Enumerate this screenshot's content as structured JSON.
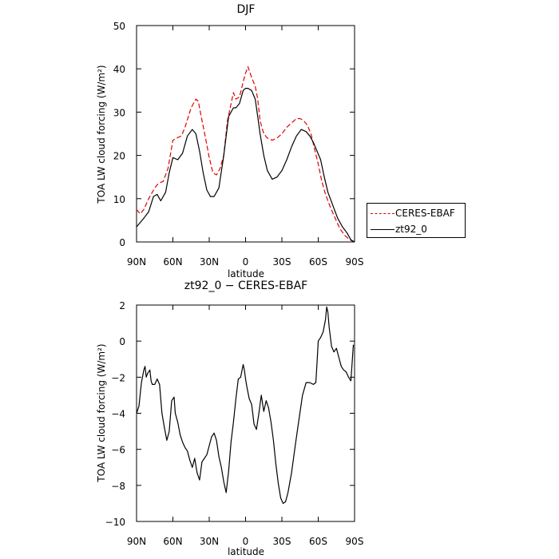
{
  "colors": {
    "ceres": "#e00000",
    "model": "#000000",
    "axis": "#000000"
  },
  "chart_data": [
    {
      "type": "line",
      "title": "DJF",
      "xlabel": "latitude",
      "ylabel": "TOA LW cloud forcing (W/m²)",
      "ylim": [
        0,
        50
      ],
      "yticks": [
        "0",
        "10",
        "20",
        "30",
        "40",
        "50"
      ],
      "xlim": [
        90,
        -90
      ],
      "xtick_values": [
        90,
        60,
        30,
        0,
        -30,
        -60,
        -90
      ],
      "xticks": [
        "90N",
        "60N",
        "30N",
        "0",
        "30S",
        "60S",
        "90S"
      ],
      "legend_placement": "right",
      "series": [
        {
          "name": "CERES-EBAF",
          "style": "dashed",
          "color": "#e00000",
          "x": [
            90,
            87,
            84,
            80,
            75,
            72,
            68,
            64,
            60,
            57,
            53,
            50,
            45,
            41,
            39,
            37,
            33,
            30,
            27,
            24,
            21,
            18,
            15,
            10,
            8,
            5,
            2,
            0,
            -2,
            -5,
            -8,
            -10,
            -12,
            -15,
            -18,
            -22,
            -26,
            -30,
            -34,
            -38,
            -42,
            -45,
            -48,
            -51,
            -54,
            -57,
            -60,
            -63,
            -66,
            -70,
            -74,
            -78,
            -82,
            -86,
            -90
          ],
          "y": [
            7.5,
            6.5,
            7.5,
            10,
            12.5,
            13.5,
            14,
            17,
            23.5,
            24,
            24.5,
            26.5,
            31,
            33,
            32.5,
            29.5,
            24,
            19.5,
            16,
            15.5,
            17,
            20,
            28,
            34.5,
            33,
            33.5,
            37,
            39,
            40.5,
            38,
            36,
            33,
            28,
            25,
            24,
            23.5,
            24,
            25,
            26.5,
            27.5,
            28.5,
            28.5,
            28,
            27,
            25,
            21.5,
            18,
            14,
            11,
            8,
            5.5,
            3,
            1.5,
            0.5,
            0
          ]
        },
        {
          "name": "zt92_0",
          "style": "solid",
          "color": "#000000",
          "x": [
            90,
            87,
            84,
            80,
            76,
            73,
            70,
            66,
            63,
            60,
            56,
            52,
            48,
            44,
            41,
            38,
            35,
            32,
            29,
            26,
            22,
            18,
            14,
            10,
            8,
            5,
            2,
            0,
            -2,
            -5,
            -8,
            -10,
            -12,
            -15,
            -18,
            -22,
            -26,
            -30,
            -34,
            -38,
            -42,
            -46,
            -50,
            -53,
            -56,
            -59,
            -62,
            -65,
            -68,
            -72,
            -76,
            -80,
            -84,
            -87,
            -90
          ],
          "y": [
            3.5,
            4.5,
            5.5,
            7,
            10.5,
            11,
            9.5,
            11.5,
            16,
            19.5,
            19,
            20.5,
            24.5,
            26,
            25,
            21,
            16,
            12,
            10.5,
            10.5,
            12.5,
            20,
            29,
            31,
            31,
            32,
            35,
            35.5,
            35.5,
            35,
            33,
            29,
            25,
            20,
            16.5,
            14.5,
            15,
            16.5,
            19,
            22,
            24.5,
            26,
            25.5,
            24.5,
            23,
            21,
            19,
            15,
            11.5,
            8.5,
            5.5,
            3.5,
            2,
            0.5,
            0
          ]
        }
      ]
    },
    {
      "type": "line",
      "title": "zt92_0 − CERES-EBAF",
      "xlabel": "latitude",
      "ylabel": "TOA LW cloud forcing (W/m²)",
      "ylim": [
        -10,
        2
      ],
      "yticks": [
        "−10",
        "−8",
        "−6",
        "−4",
        "−2",
        "0",
        "2"
      ],
      "ytick_values": [
        -10,
        -8,
        -6,
        -4,
        -2,
        0,
        2
      ],
      "xlim": [
        90,
        -90
      ],
      "xtick_values": [
        90,
        60,
        30,
        0,
        -30,
        -60,
        -90
      ],
      "xticks": [
        "90N",
        "60N",
        "30N",
        "0",
        "30S",
        "60S",
        "90S"
      ],
      "series": [
        {
          "name": "zt92_0 − CERES-EBAF",
          "style": "solid",
          "color": "#000000",
          "x": [
            90,
            88,
            86,
            84,
            83,
            82,
            81,
            79,
            78,
            77,
            75,
            73,
            71,
            69,
            67,
            65,
            63,
            61,
            59,
            58,
            56,
            54,
            52,
            50,
            48,
            46,
            44,
            42,
            40,
            38,
            36,
            34,
            32,
            30,
            28,
            26,
            24,
            22,
            20,
            18,
            16,
            14,
            12,
            10,
            8,
            6,
            4,
            2,
            1,
            0,
            -1,
            -3,
            -5,
            -7,
            -9,
            -11,
            -13,
            -15,
            -17,
            -19,
            -21,
            -23,
            -25,
            -27,
            -29,
            -31,
            -33,
            -35,
            -38,
            -41,
            -44,
            -47,
            -50,
            -53,
            -56,
            -58,
            -59,
            -60,
            -62,
            -64,
            -66,
            -67,
            -68,
            -69,
            -71,
            -73,
            -75,
            -77,
            -79,
            -81,
            -83,
            -85,
            -87,
            -89
          ],
          "x_note": "",
          "y": [
            -4,
            -3.6,
            -2.3,
            -1.6,
            -1.4,
            -2,
            -1.8,
            -1.6,
            -2.2,
            -2.4,
            -2.4,
            -2.1,
            -2.4,
            -4,
            -4.8,
            -5.5,
            -5,
            -3.3,
            -3.1,
            -4,
            -4.5,
            -5.2,
            -5.6,
            -5.9,
            -6.1,
            -6.6,
            -7,
            -6.5,
            -7.3,
            -7.7,
            -6.7,
            -6.5,
            -6.3,
            -5.8,
            -5.3,
            -5.1,
            -5.5,
            -6.4,
            -7,
            -7.8,
            -8.4,
            -7.2,
            -5.6,
            -4.5,
            -3.2,
            -2.1,
            -2,
            -1.3,
            -1.6,
            -2.1,
            -2.5,
            -3.2,
            -3.5,
            -4.6,
            -4.9,
            -4,
            -3,
            -3.9,
            -3.3,
            -3.7,
            -4.5,
            -5.5,
            -6.8,
            -7.9,
            -8.7,
            -9,
            -8.9,
            -8.4,
            -7.3,
            -5.8,
            -4.4,
            -3,
            -2.3,
            -2.3,
            -2.4,
            -2.3,
            -1.2,
            0,
            0.2,
            0.5,
            1.2,
            1.9,
            1.6,
            0.8,
            -0.3,
            -0.6,
            -0.4,
            -0.9,
            -1.4,
            -1.6,
            -1.7,
            -2,
            -2.2,
            -0.2
          ]
        }
      ]
    }
  ]
}
